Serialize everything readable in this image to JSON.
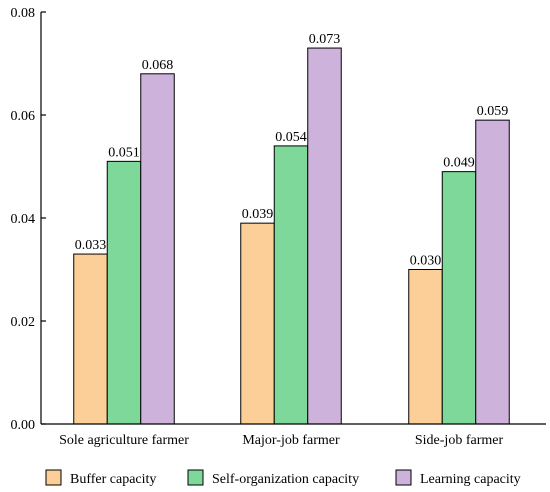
{
  "chart_data": {
    "type": "bar",
    "categories": [
      "Sole agriculture farmer",
      "Major-job farmer",
      "Side-job farmer"
    ],
    "series": [
      {
        "name": "Buffer capacity",
        "values": [
          0.033,
          0.039,
          0.03
        ],
        "labels": [
          "0.033",
          "0.039",
          "0.030"
        ],
        "color": "#FDCF98"
      },
      {
        "name": "Self-organization capacity",
        "values": [
          0.051,
          0.054,
          0.049
        ],
        "labels": [
          "0.051",
          "0.054",
          "0.049"
        ],
        "color": "#7DD89A"
      },
      {
        "name": "Learning capacity",
        "values": [
          0.068,
          0.073,
          0.059
        ],
        "labels": [
          "0.068",
          "0.073",
          "0.059"
        ],
        "color": "#CDB2DC"
      }
    ],
    "ylim": [
      0,
      0.08
    ],
    "yticks": [
      "0.00",
      "0.02",
      "0.04",
      "0.06",
      "0.08"
    ],
    "grid": false,
    "legend_position": "bottom",
    "title": "",
    "xlabel": "",
    "ylabel": ""
  }
}
